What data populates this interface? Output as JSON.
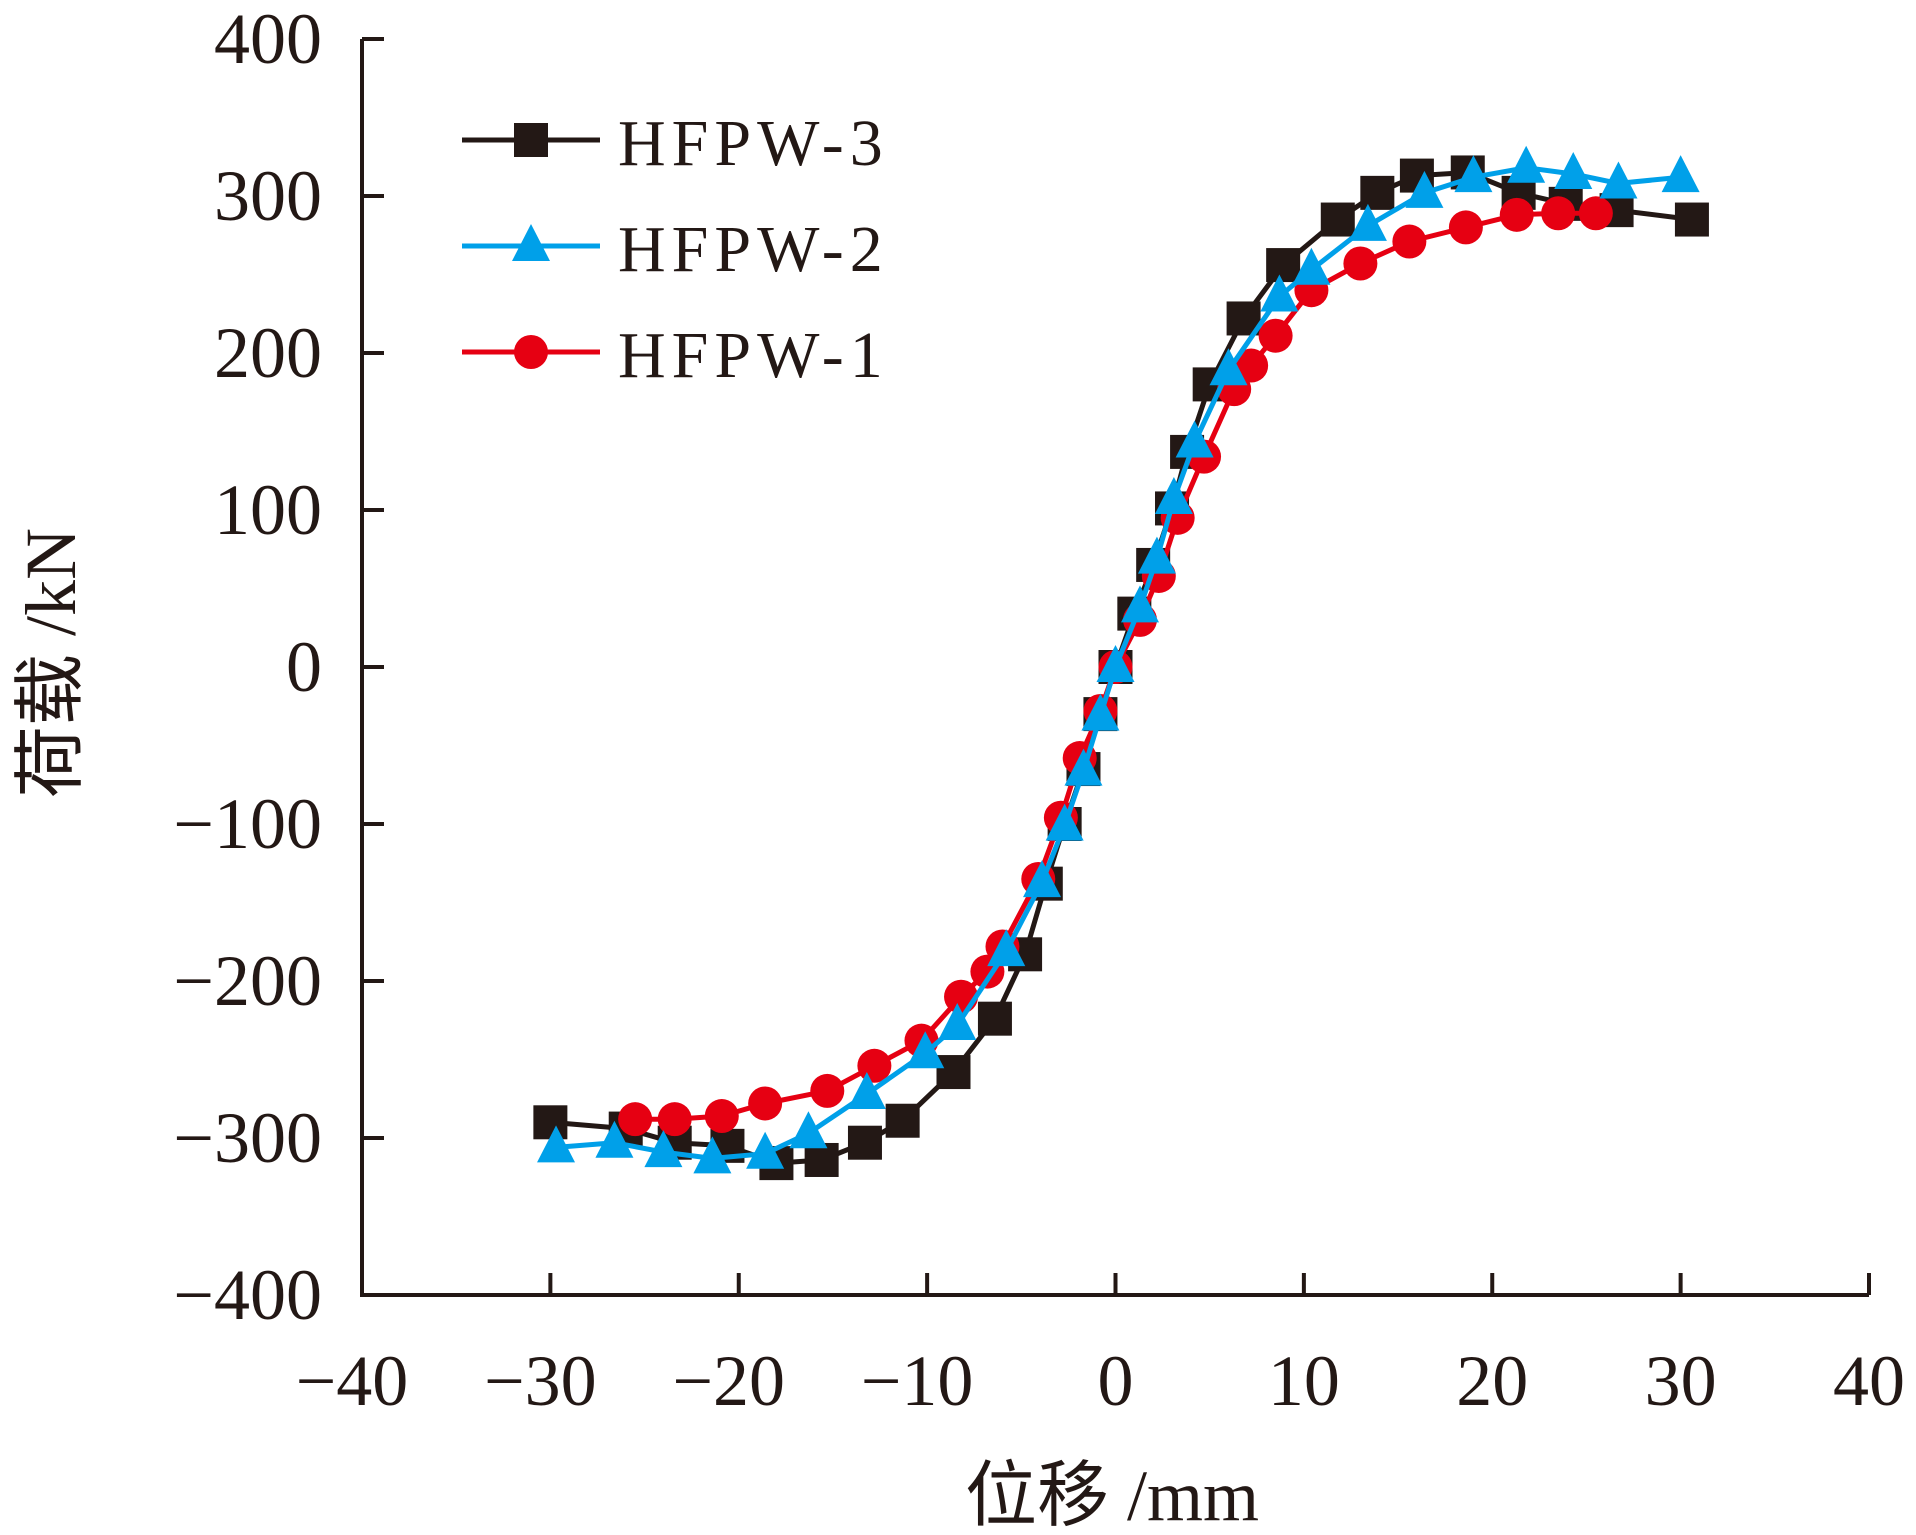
{
  "chart_data": {
    "type": "line",
    "title": "",
    "xlabel": "位移 /mm",
    "ylabel": "荷载 /kN",
    "xlim": [
      -40,
      40
    ],
    "ylim": [
      -400,
      400
    ],
    "xticks": [
      -40,
      -30,
      -20,
      -10,
      0,
      10,
      20,
      30,
      40
    ],
    "yticks": [
      -400,
      -300,
      -200,
      -100,
      0,
      100,
      200,
      300,
      400
    ],
    "xtick_labels": [
      "−40",
      "−30",
      "−20",
      "−10",
      "0",
      "10",
      "20",
      "30",
      "40"
    ],
    "ytick_labels": [
      "−400",
      "−300",
      "−200",
      "−100",
      "0",
      "100",
      "200",
      "300",
      "400"
    ],
    "grid": false,
    "legend_position": "top-left",
    "series": [
      {
        "name": "HFPW-3",
        "color": "#231815",
        "marker": "square",
        "x": [
          -30,
          -26,
          -23.4,
          -20.6,
          -18,
          -15.6,
          -13.3,
          -11.3,
          -8.6,
          -6.4,
          -4.8,
          -3.7,
          -2.7,
          -1.7,
          -0.8,
          0,
          1,
          2,
          3,
          3.8,
          5,
          6.8,
          8.9,
          11.8,
          13.9,
          16,
          18.7,
          21.4,
          23.9,
          26.6,
          30.6
        ],
        "y": [
          -290,
          -294,
          -303,
          -305,
          -316,
          -314,
          -303,
          -289,
          -258,
          -224,
          -183,
          -138,
          -100,
          -65,
          -30,
          0,
          34,
          65,
          101,
          137,
          180,
          222,
          256,
          285,
          302,
          313,
          315,
          302,
          295,
          291,
          285
        ]
      },
      {
        "name": "HFPW-2",
        "color": "#00A0E9",
        "marker": "triangle",
        "x": [
          -29.7,
          -26.6,
          -24,
          -21.4,
          -18.6,
          -16.3,
          -13.2,
          -10.1,
          -8.4,
          -5.8,
          -3.9,
          -2.7,
          -1.7,
          -0.8,
          0,
          1.3,
          2.2,
          3.1,
          4.2,
          6,
          8.7,
          10.4,
          13.4,
          16.4,
          19,
          21.8,
          24.3,
          26.7,
          30
        ],
        "y": [
          -306,
          -303,
          -309,
          -313,
          -310,
          -297,
          -272,
          -246,
          -228,
          -181,
          -137,
          -101,
          -66,
          -31,
          0,
          38,
          69,
          107,
          143,
          189,
          236,
          253,
          281,
          302,
          312,
          318,
          314,
          308,
          312
        ]
      },
      {
        "name": "HFPW-1",
        "color": "#E60012",
        "marker": "circle",
        "x": [
          -25.5,
          -23.4,
          -20.9,
          -18.6,
          -15.3,
          -12.8,
          -10.3,
          -8.2,
          -6.8,
          -6,
          -4.1,
          -2.9,
          -1.9,
          -0.8,
          0,
          1.3,
          2.3,
          3.3,
          4.7,
          6.3,
          7.2,
          8.5,
          10.4,
          13,
          15.6,
          18.6,
          21.3,
          23.5,
          25.5
        ],
        "y": [
          -288,
          -288,
          -286,
          -278,
          -270,
          -254,
          -238,
          -210,
          -194,
          -178,
          -135,
          -96,
          -58,
          -28,
          0,
          30,
          58,
          95,
          134,
          177,
          192,
          211,
          240,
          257,
          271,
          280,
          288,
          289,
          289
        ]
      }
    ]
  }
}
